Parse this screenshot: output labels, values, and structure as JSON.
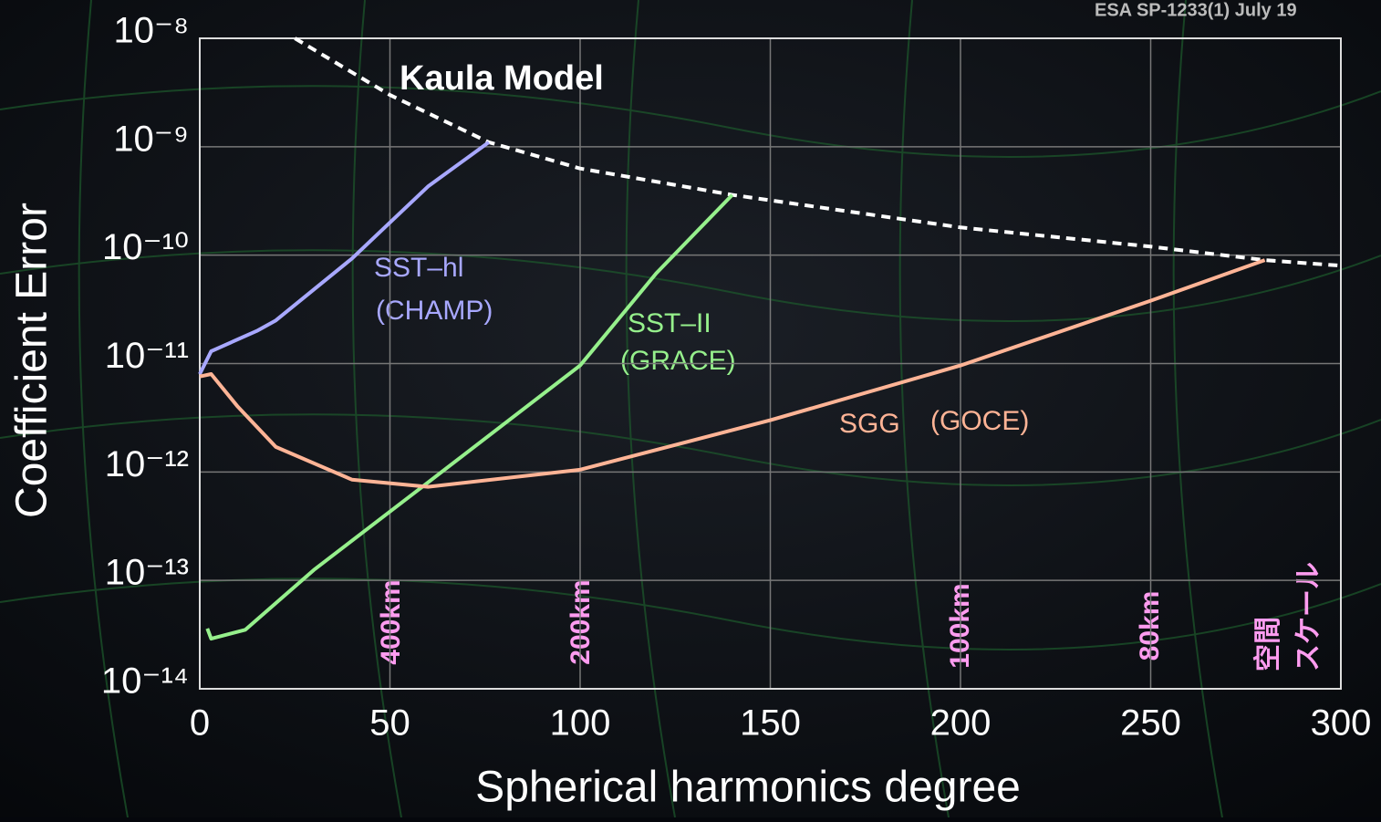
{
  "chart_data": {
    "type": "line",
    "source": "ESA SP-1233(1) July 19",
    "xlabel": "Spherical harmonics degree",
    "ylabel": "Coefficient Error",
    "xlim": [
      0,
      300
    ],
    "xticks": [
      0,
      50,
      100,
      150,
      200,
      250,
      300
    ],
    "ylim": [
      1e-14,
      1e-08
    ],
    "log_y": true,
    "grid": true,
    "yticks": [
      {
        "value": 1e-08,
        "label": "10⁻⁸"
      },
      {
        "value": 1e-09,
        "label": "10⁻⁹"
      },
      {
        "value": 1e-10,
        "label": "10⁻¹⁰"
      },
      {
        "value": 1e-11,
        "label": "10⁻¹¹"
      },
      {
        "value": 1e-12,
        "label": "10⁻¹²"
      },
      {
        "value": 1e-13,
        "label": "10⁻¹³"
      },
      {
        "value": 1e-14,
        "label": "10⁻¹⁴"
      }
    ],
    "series": [
      {
        "name": "Kaula Model",
        "color": "#ffffff",
        "dashed": true,
        "x": [
          25,
          50,
          76,
          100,
          140,
          200,
          250,
          280,
          300
        ],
        "values": [
          1e-08,
          3e-09,
          1.1e-09,
          6.3e-10,
          3.6e-10,
          1.8e-10,
          1.2e-10,
          9e-11,
          8e-11
        ]
      },
      {
        "name": "SST–hl",
        "color": "#a8a8ff",
        "x": [
          0,
          3,
          15,
          20,
          40,
          60,
          76
        ],
        "values": [
          8e-12,
          1.3e-11,
          2e-11,
          2.5e-11,
          9.3e-11,
          4.3e-10,
          1.1e-09
        ]
      },
      {
        "name": "SST–II",
        "color": "#96f08c",
        "x": [
          2,
          3,
          12,
          30,
          60,
          100,
          120,
          140
        ],
        "values": [
          3.6e-14,
          2.9e-14,
          3.5e-14,
          1.25e-13,
          8e-13,
          9.6e-12,
          6.8e-11,
          3.6e-10
        ]
      },
      {
        "name": "SGG",
        "color": "#ffb496",
        "x": [
          0,
          3,
          10,
          20,
          40,
          60,
          100,
          150,
          200,
          250,
          280
        ],
        "values": [
          7.6e-12,
          8e-12,
          4e-12,
          1.7e-12,
          8.5e-13,
          7.3e-13,
          1.05e-12,
          3e-12,
          9.6e-12,
          3.8e-11,
          9e-11
        ]
      }
    ],
    "annotations": {
      "champ": "(CHAMP)",
      "grace": "(GRACE)",
      "goce": "(GOCE)"
    },
    "scale_labels": {
      "km400": "400km",
      "km200": "200km",
      "km100": "100km",
      "km80": "80km",
      "scale_top": "空間",
      "scale_bottom": "スケール"
    }
  }
}
